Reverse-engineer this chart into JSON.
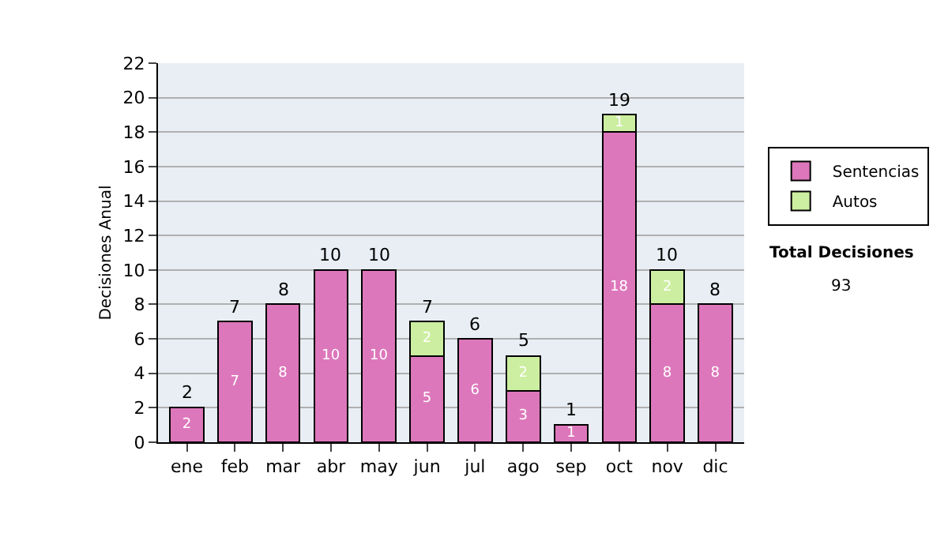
{
  "chart_data": {
    "type": "bar",
    "ylabel": "Decisiones Anual",
    "categories": [
      "ene",
      "feb",
      "mar",
      "abr",
      "may",
      "jun",
      "jul",
      "ago",
      "sep",
      "oct",
      "nov",
      "dic"
    ],
    "series": [
      {
        "name": "Sentencias",
        "color": "#dd77bb",
        "values": [
          2,
          7,
          8,
          10,
          10,
          5,
          6,
          3,
          1,
          18,
          8,
          8
        ]
      },
      {
        "name": "Autos",
        "color": "#cceea0",
        "values": [
          null,
          null,
          null,
          null,
          null,
          2,
          null,
          2,
          null,
          1,
          2,
          null
        ]
      }
    ],
    "stacked": true,
    "data_labels": true,
    "totals": [
      "2",
      "7",
      "8",
      "10",
      "10",
      "7",
      "6",
      "5",
      "1",
      "19",
      "10",
      "8"
    ],
    "ylim": [
      0,
      22
    ],
    "yticks": [
      0,
      2,
      4,
      6,
      8,
      10,
      12,
      14,
      16,
      18,
      20,
      22
    ],
    "grid": "y",
    "legend": "right",
    "annotations": [
      "Total Decisiones",
      "93"
    ]
  }
}
